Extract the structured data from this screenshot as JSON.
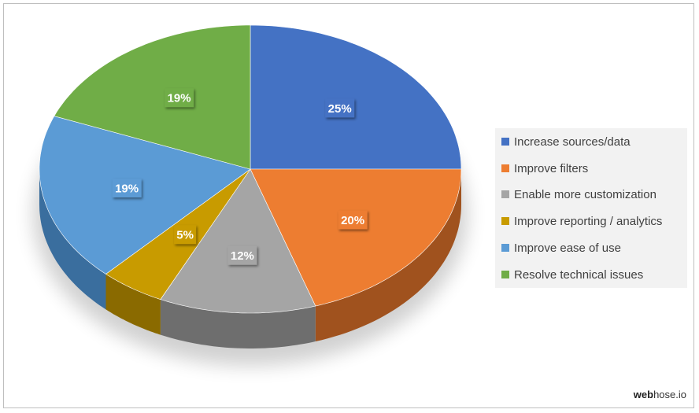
{
  "chart_data": {
    "type": "pie",
    "title": "",
    "slices": [
      {
        "label": "Increase sources/data",
        "value": 25,
        "display": "25%",
        "color": "#4472C4",
        "side": "#2E4F8A"
      },
      {
        "label": "Improve filters",
        "value": 20,
        "display": "20%",
        "color": "#ED7D31",
        "side": "#A0521E"
      },
      {
        "label": "Enable more customization",
        "value": 12,
        "display": "12%",
        "color": "#A5A5A5",
        "side": "#6E6E6E"
      },
      {
        "label": "Improve reporting / analytics",
        "value": 5,
        "display": "5%",
        "color": "#C89B00",
        "side": "#8A6A00"
      },
      {
        "label": "Improve ease of use",
        "value": 19,
        "display": "19%",
        "color": "#5B9BD5",
        "side": "#3A6E9E"
      },
      {
        "label": "Resolve technical issues",
        "value": 19,
        "display": "19%",
        "color": "#70AD47",
        "side": "#4A7A2E"
      }
    ],
    "legend_position": "right",
    "style": "3d-pie"
  },
  "brand": {
    "bold": "web",
    "rest": "hose.io"
  }
}
